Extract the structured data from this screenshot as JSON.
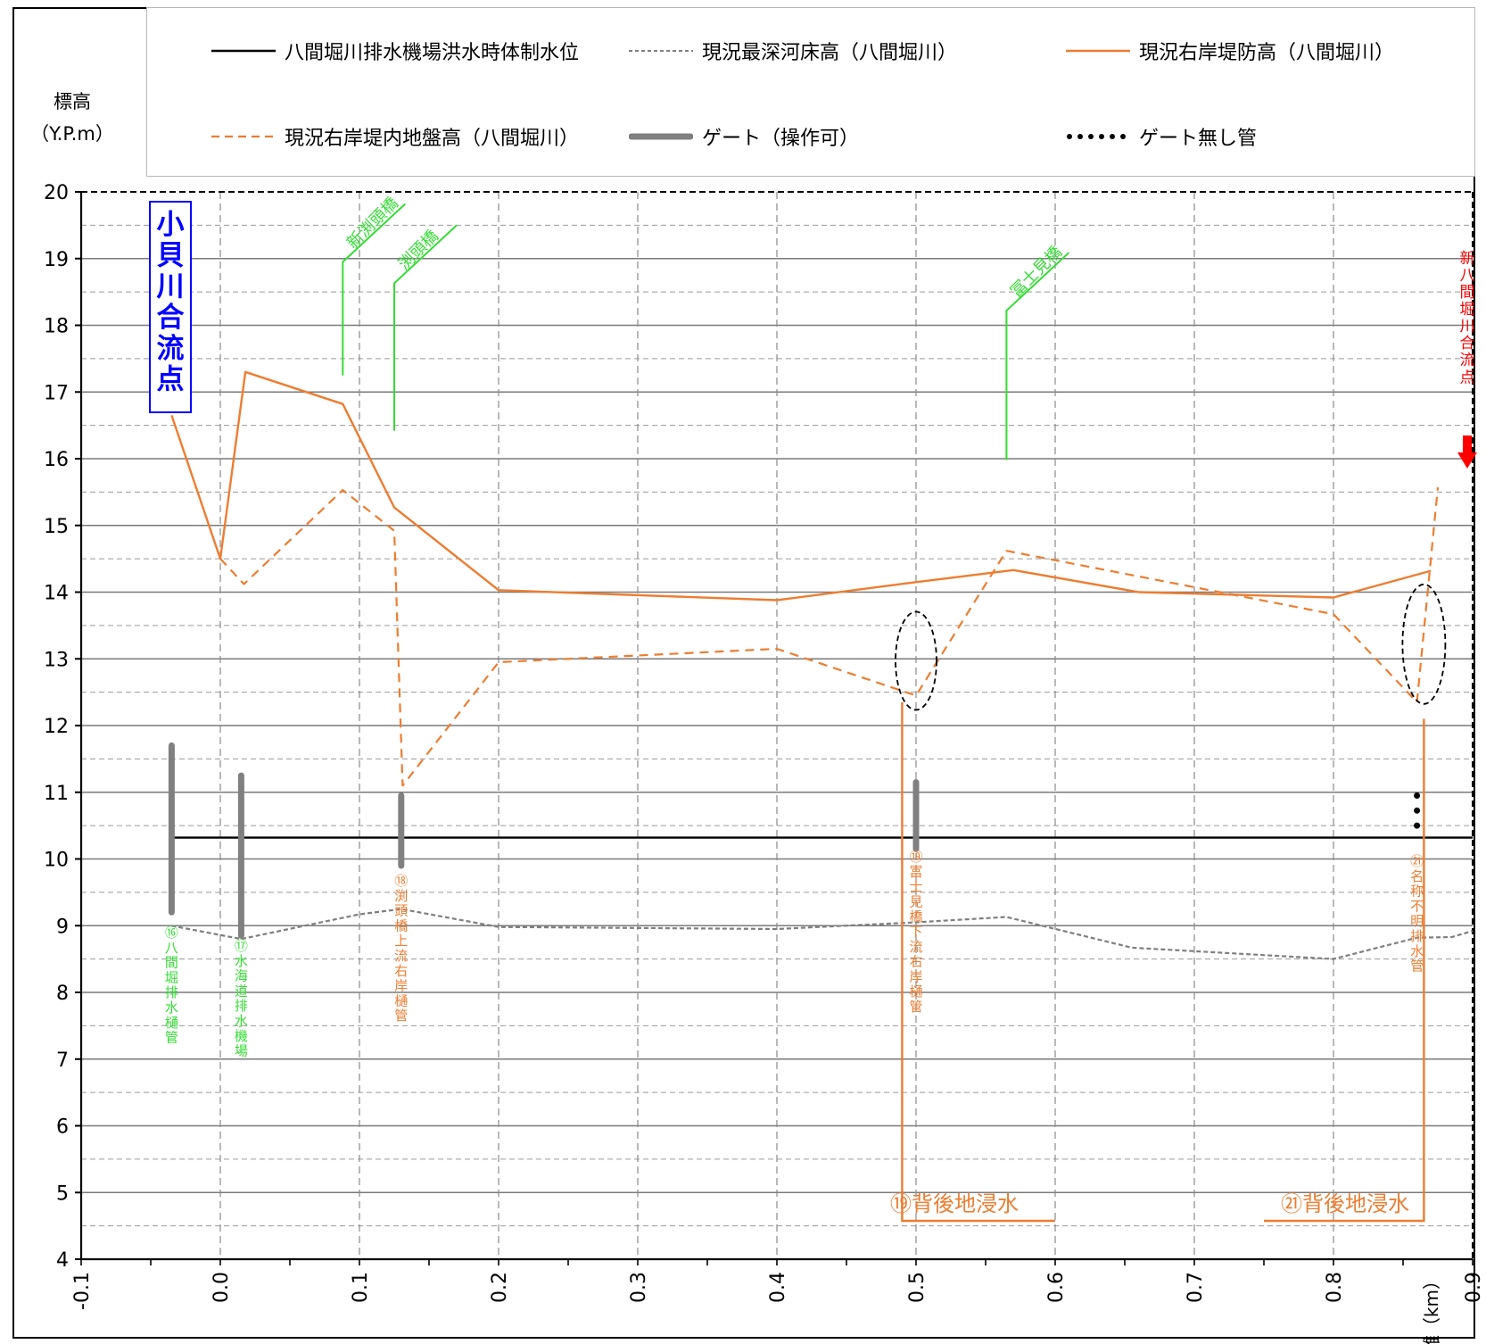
{
  "y_axis_label_line1": "標高",
  "y_axis_label_line2": "（Y.P.m）",
  "x_axis_label": "距離（km）",
  "legend": [
    {
      "label": "八間堀川排水機場洪水時体制水位",
      "style": "solid",
      "color": "#000000"
    },
    {
      "label": "現況最深河床高（八間堀川）",
      "style": "dotted-thin",
      "color": "#7f7f7f"
    },
    {
      "label": "現況右岸堤防高（八間堀川）",
      "style": "solid",
      "color": "#ed7d31"
    },
    {
      "label": "現況右岸堤内地盤高（八間堀川）",
      "style": "dashed",
      "color": "#ed7d31"
    },
    {
      "label": "ゲート（操作可）",
      "style": "thick",
      "color": "#808080"
    },
    {
      "label": "ゲート無し管",
      "style": "dots",
      "color": "#000000"
    }
  ],
  "colors": {
    "black": "#000000",
    "gray": "#7f7f7f",
    "orange": "#ed7d31",
    "green": "#33dd33",
    "blue": "#0000ff",
    "red": "#ff0000"
  },
  "annotations": {
    "confluence_left": "小貝川合流点",
    "confluence_right": "新八間堀川合流点",
    "bridges": [
      "新渕頭橋",
      "渕頭橋",
      "冨士見橋"
    ],
    "facilities": [
      {
        "label": "⑯八間堀排水樋管",
        "x": -0.035,
        "gate_top": 11.7,
        "gate_bottom": 9.2
      },
      {
        "label": "⑰水海道排水機場",
        "x": 0.015,
        "gate_top": 11.25,
        "gate_bottom": 8.85
      },
      {
        "label": "⑱渕頭橋上流右岸樋管",
        "x": 0.13,
        "gate_top": 10.95,
        "gate_bottom": 9.9
      },
      {
        "label": "⑲冨士見橋下流右岸樋管",
        "x": 0.5,
        "gate_top": 11.15,
        "gate_bottom": 10.15
      },
      {
        "label": "㉑名称不明排水管",
        "x": 0.86,
        "gate_top": 10.95,
        "gate_bottom": 10.5
      }
    ],
    "inundation": [
      "⑲背後地浸水",
      "㉑背後地浸水"
    ]
  },
  "chart_data": {
    "type": "line",
    "xlabel": "距離（km）",
    "ylabel": "標高（Y.P.m）",
    "xlim": [
      -0.1,
      0.9
    ],
    "ylim": [
      4,
      20
    ],
    "x_ticks": [
      -0.1,
      0.0,
      0.1,
      0.2,
      0.3,
      0.4,
      0.5,
      0.6,
      0.7,
      0.8,
      0.9
    ],
    "y_ticks": [
      4,
      5,
      6,
      7,
      8,
      9,
      10,
      11,
      12,
      13,
      14,
      15,
      16,
      17,
      18,
      19,
      20
    ],
    "grid": true,
    "series": [
      {
        "name": "八間堀川排水機場洪水時体制水位",
        "style": "solid",
        "color": "#000000",
        "points": [
          [
            -0.035,
            10.32
          ],
          [
            0.9,
            10.32
          ]
        ]
      },
      {
        "name": "現況最深河床高（八間堀川）",
        "style": "dotted",
        "color": "#7f7f7f",
        "points": [
          [
            -0.035,
            9.0
          ],
          [
            0.015,
            8.8
          ],
          [
            0.1,
            9.17
          ],
          [
            0.13,
            9.25
          ],
          [
            0.2,
            8.98
          ],
          [
            0.4,
            8.95
          ],
          [
            0.5,
            9.05
          ],
          [
            0.565,
            9.13
          ],
          [
            0.655,
            8.67
          ],
          [
            0.8,
            8.5
          ],
          [
            0.86,
            8.82
          ],
          [
            0.885,
            8.83
          ],
          [
            0.9,
            8.92
          ]
        ]
      },
      {
        "name": "現況右岸堤防高（八間堀川）",
        "style": "solid",
        "color": "#ed7d31",
        "points": [
          [
            -0.035,
            16.65
          ],
          [
            0.0,
            14.5
          ],
          [
            0.018,
            17.3
          ],
          [
            0.088,
            16.82
          ],
          [
            0.125,
            15.27
          ],
          [
            0.2,
            14.03
          ],
          [
            0.4,
            13.88
          ],
          [
            0.5,
            14.15
          ],
          [
            0.57,
            14.33
          ],
          [
            0.66,
            14.0
          ],
          [
            0.8,
            13.92
          ],
          [
            0.87,
            14.32
          ]
        ]
      },
      {
        "name": "現況右岸堤内地盤高（八間堀川）",
        "style": "dashed",
        "color": "#ed7d31",
        "points": [
          [
            0.0,
            14.5
          ],
          [
            0.017,
            14.12
          ],
          [
            0.088,
            15.53
          ],
          [
            0.125,
            14.92
          ],
          [
            0.131,
            11.1
          ],
          [
            0.2,
            12.95
          ],
          [
            0.4,
            13.15
          ],
          [
            0.5,
            12.45
          ],
          [
            0.565,
            14.62
          ],
          [
            0.8,
            13.67
          ],
          [
            0.86,
            12.35
          ],
          [
            0.875,
            15.57
          ]
        ]
      }
    ]
  }
}
